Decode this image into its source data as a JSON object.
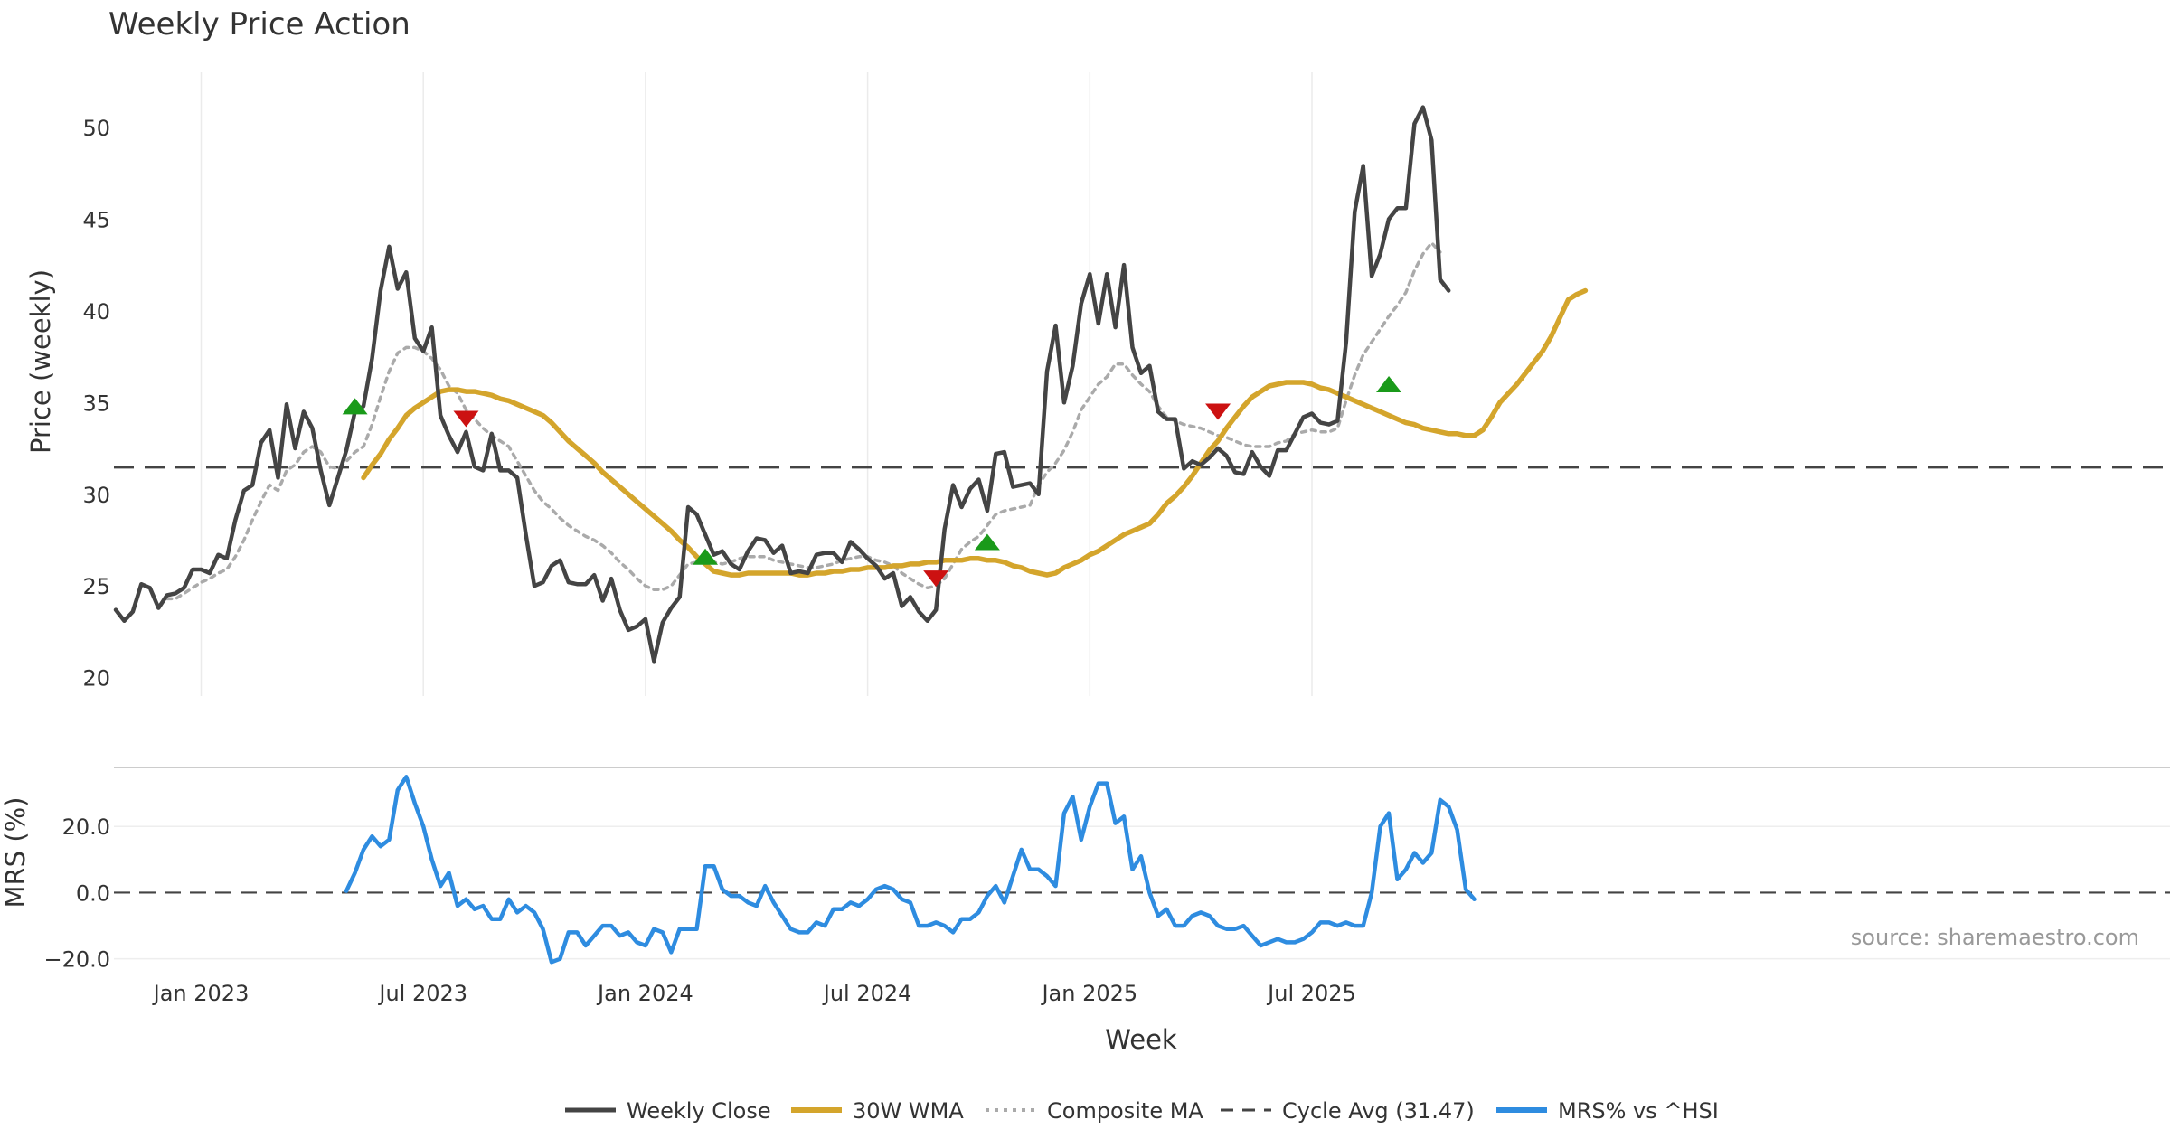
{
  "chart_data": [
    {
      "type": "line",
      "title": "Weekly Price Action",
      "ylabel": "Price (weekly)",
      "ylim": [
        19,
        53
      ],
      "yticks": [
        20,
        25,
        30,
        35,
        40,
        45,
        50
      ],
      "reference_line": {
        "value": 31.47,
        "style": "dashed"
      },
      "grid": "vertical",
      "series": [
        {
          "name": "Weekly Close",
          "color": "#444444",
          "start_week": 0,
          "values": [
            23.7,
            23.1,
            23.6,
            25.1,
            24.9,
            23.8,
            24.5,
            24.6,
            24.9,
            25.9,
            25.9,
            25.7,
            26.7,
            26.5,
            28.6,
            30.2,
            30.5,
            32.8,
            33.5,
            30.9,
            34.9,
            32.5,
            34.5,
            33.6,
            31.3,
            29.4,
            30.9,
            32.4,
            34.5,
            34.8,
            37.4,
            41.1,
            43.5,
            41.2,
            42.1,
            38.5,
            37.8,
            39.1,
            34.3,
            33.2,
            32.3,
            33.4,
            31.5,
            31.3,
            33.3,
            31.3,
            31.3,
            30.9,
            27.8,
            25.0,
            25.2,
            26.1,
            26.4,
            25.2,
            25.1,
            25.1,
            25.6,
            24.2,
            25.4,
            23.7,
            22.6,
            22.8,
            23.2,
            20.9,
            23.0,
            23.8,
            24.4,
            29.3,
            28.9,
            27.8,
            26.7,
            26.9,
            26.2,
            25.9,
            26.9,
            27.6,
            27.5,
            26.8,
            27.2,
            25.7,
            25.8,
            25.7,
            26.7,
            26.8,
            26.8,
            26.3,
            27.4,
            27.0,
            26.5,
            26.1,
            25.4,
            25.7,
            23.9,
            24.4,
            23.6,
            23.1,
            23.7,
            28.1,
            30.5,
            29.3,
            30.3,
            30.8,
            29.1,
            32.2,
            32.3,
            30.4,
            30.5,
            30.6,
            30.0,
            36.7,
            39.2,
            35.0,
            37.0,
            40.4,
            42.0,
            39.3,
            42.0,
            39.1,
            42.5,
            38.0,
            36.6,
            37.0,
            34.5,
            34.1,
            34.1,
            31.4,
            31.8,
            31.6,
            32.0,
            32.5,
            32.1,
            31.2,
            31.1,
            32.3,
            31.5,
            31.0,
            32.4,
            32.4,
            33.3,
            34.2,
            34.4,
            33.9,
            33.8,
            34.0,
            38.3,
            45.4,
            47.9,
            41.9,
            43.1,
            45.0,
            45.6,
            45.6,
            50.2,
            51.1,
            49.3,
            41.7,
            41.1
          ]
        },
        {
          "name": "30W WMA",
          "color": "#d4a52c",
          "start_week": 29,
          "values": [
            30.9,
            31.6,
            32.2,
            33.0,
            33.6,
            34.3,
            34.7,
            35.0,
            35.3,
            35.6,
            35.7,
            35.7,
            35.6,
            35.6,
            35.5,
            35.4,
            35.2,
            35.1,
            34.9,
            34.7,
            34.5,
            34.3,
            33.9,
            33.4,
            32.9,
            32.5,
            32.1,
            31.7,
            31.2,
            30.8,
            30.4,
            30.0,
            29.6,
            29.2,
            28.8,
            28.4,
            28.0,
            27.5,
            27.1,
            26.6,
            26.2,
            25.8,
            25.7,
            25.6,
            25.6,
            25.7,
            25.7,
            25.7,
            25.7,
            25.7,
            25.7,
            25.6,
            25.6,
            25.7,
            25.7,
            25.8,
            25.8,
            25.9,
            25.9,
            26.0,
            26.0,
            26.0,
            26.1,
            26.1,
            26.2,
            26.2,
            26.3,
            26.3,
            26.4,
            26.4,
            26.4,
            26.5,
            26.5,
            26.4,
            26.4,
            26.3,
            26.1,
            26.0,
            25.8,
            25.7,
            25.6,
            25.7,
            26.0,
            26.2,
            26.4,
            26.7,
            26.9,
            27.2,
            27.5,
            27.8,
            28.0,
            28.2,
            28.4,
            28.9,
            29.5,
            29.9,
            30.4,
            31.0,
            31.7,
            32.4,
            32.9,
            33.6,
            34.2,
            34.8,
            35.3,
            35.6,
            35.9,
            36.0,
            36.1,
            36.1,
            36.1,
            36.0,
            35.8,
            35.7,
            35.5,
            35.3,
            35.1,
            34.9,
            34.7,
            34.5,
            34.3,
            34.1,
            33.9,
            33.8,
            33.6,
            33.5,
            33.4,
            33.3,
            33.3,
            33.2,
            33.2,
            33.5,
            34.2,
            35.0,
            35.5,
            36.0,
            36.6,
            37.2,
            37.8,
            38.6,
            39.6,
            40.6,
            40.9,
            41.1
          ]
        },
        {
          "name": "Composite MA",
          "color": "#aaaaaa",
          "start_week": 6,
          "values": [
            24.3,
            24.3,
            24.6,
            24.9,
            25.2,
            25.4,
            25.7,
            25.9,
            26.6,
            27.5,
            28.6,
            29.6,
            30.5,
            30.2,
            31.3,
            31.6,
            32.3,
            32.6,
            32.3,
            31.5,
            31.4,
            31.8,
            32.3,
            32.6,
            33.8,
            35.3,
            36.7,
            37.7,
            38.0,
            38.0,
            37.8,
            37.4,
            36.8,
            35.9,
            35.5,
            34.6,
            34.1,
            33.6,
            33.2,
            32.9,
            32.6,
            31.8,
            31.0,
            30.2,
            29.6,
            29.2,
            28.7,
            28.3,
            28.0,
            27.7,
            27.5,
            27.2,
            26.8,
            26.3,
            25.9,
            25.4,
            25.0,
            24.8,
            24.8,
            25.0,
            25.6,
            26.2,
            26.3,
            26.4,
            26.3,
            26.2,
            26.3,
            26.5,
            26.6,
            26.6,
            26.6,
            26.4,
            26.3,
            26.2,
            26.1,
            26.0,
            26.0,
            26.1,
            26.2,
            26.4,
            26.5,
            26.6,
            26.6,
            26.4,
            26.3,
            26.1,
            25.7,
            25.4,
            25.1,
            24.9,
            25.0,
            25.4,
            26.2,
            27.0,
            27.4,
            27.7,
            28.3,
            28.9,
            29.1,
            29.2,
            29.3,
            29.4,
            30.5,
            31.2,
            31.7,
            32.4,
            33.4,
            34.6,
            35.3,
            36.0,
            36.4,
            37.1,
            37.1,
            36.5,
            36.0,
            35.6,
            34.8,
            34.2,
            34.0,
            33.8,
            33.7,
            33.6,
            33.4,
            33.2,
            33.1,
            32.9,
            32.7,
            32.6,
            32.6,
            32.6,
            32.8,
            32.9,
            33.3,
            33.4,
            33.5,
            33.4,
            33.4,
            33.6,
            35.1,
            36.5,
            37.6,
            38.3,
            39.0,
            39.7,
            40.3,
            41.0,
            42.2,
            43.1,
            43.7,
            43.2
          ]
        }
      ]
    },
    {
      "type": "line",
      "ylabel": "MRS (%)",
      "ylim": [
        -22,
        37
      ],
      "yticks": [
        -20,
        0,
        20
      ],
      "ytick_labels": [
        "−20.0",
        "0.0",
        "20.0"
      ],
      "reference_line": {
        "value": 0,
        "style": "dashed"
      },
      "xlabel": "Week",
      "x_ticks": [
        "Jan 2023",
        "Jul 2023",
        "Jan 2024",
        "Jul 2024",
        "Jan 2025",
        "Jul 2025"
      ],
      "series": [
        {
          "name": "MRS% vs ^HSI",
          "color": "#2e8ce0",
          "start_week": 27,
          "values": [
            0.5,
            6,
            13,
            17,
            14,
            16,
            31,
            35,
            27,
            20,
            10,
            2,
            6,
            -4,
            -2,
            -5,
            -4,
            -8,
            -8,
            -2,
            -6,
            -4,
            -6,
            -11,
            -21,
            -20,
            -12,
            -12,
            -16,
            -13,
            -10,
            -10,
            -13,
            -12,
            -15,
            -16,
            -11,
            -12,
            -18,
            -11,
            -11,
            -11,
            8,
            8,
            1,
            -1,
            -1,
            -3,
            -4,
            2,
            -3,
            -7,
            -11,
            -12,
            -12,
            -9,
            -10,
            -5,
            -5,
            -3,
            -4,
            -2,
            1,
            2,
            1,
            -2,
            -3,
            -10,
            -10,
            -9,
            -10,
            -12,
            -8,
            -8,
            -6,
            -1,
            2,
            -3,
            5,
            13,
            7,
            7,
            5,
            2,
            24,
            29,
            16,
            26,
            33,
            33,
            21,
            23,
            7,
            11,
            0,
            -7,
            -5,
            -10,
            -10,
            -7,
            -6,
            -7,
            -10,
            -11,
            -11,
            -10,
            -13,
            -16,
            -15,
            -14,
            -15,
            -15,
            -14,
            -12,
            -9,
            -9,
            -10,
            -9,
            -10,
            -10,
            0,
            20,
            24,
            4,
            7,
            12,
            9,
            12,
            28,
            26,
            19,
            1,
            -2
          ]
        }
      ]
    }
  ],
  "legend": {
    "placement": "bottom-center",
    "items": [
      "Weekly Close",
      "30W WMA",
      "Composite MA",
      "Cycle Avg (31.47)",
      "MRS% vs ^HSI"
    ]
  },
  "source": "source: sharemaestro.com",
  "colors": {
    "signal_up": "#1a9a1a",
    "signal_down": "#cc1111"
  },
  "signals": [
    {
      "direction": "up",
      "week": 28,
      "value": 34.8
    },
    {
      "direction": "down",
      "week": 41,
      "value": 34.1
    },
    {
      "direction": "up",
      "week": 69,
      "value": 26.6
    },
    {
      "direction": "down",
      "week": 96,
      "value": 25.4
    },
    {
      "direction": "up",
      "week": 102,
      "value": 27.4
    },
    {
      "direction": "down",
      "week": 129,
      "value": 34.5
    },
    {
      "direction": "up",
      "week": 149,
      "value": 36.0
    }
  ]
}
